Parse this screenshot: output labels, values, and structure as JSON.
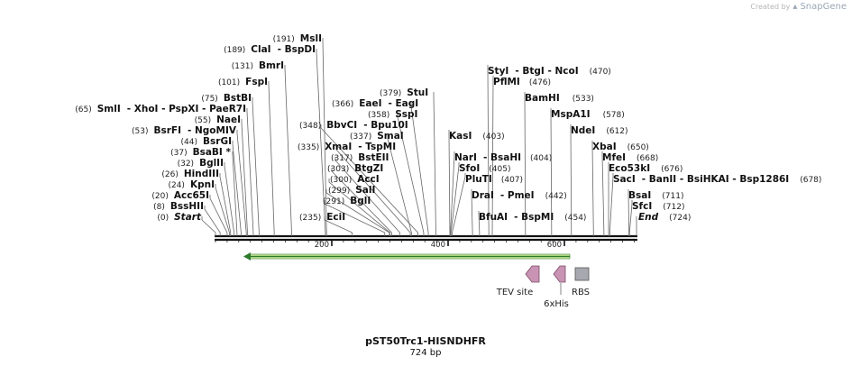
{
  "credit": {
    "created_by": "Created by",
    "brand": "SnapGene"
  },
  "title": "pST50Trc1-HISNDHFR",
  "length_label": "724 bp",
  "sequence_length": 724,
  "ruler": {
    "ticks": [
      200,
      400,
      600
    ]
  },
  "colors": {
    "backbone": "#111111",
    "orf_fill": "#d4f0a0",
    "orf_stroke": "#2d7a2d",
    "misc_feature": "#c994b4",
    "rbs": "#a8a8b0"
  },
  "left_sites": [
    {
      "pos": "(0)",
      "name": "Start"
    },
    {
      "pos": "(8)",
      "name": "BssHII"
    },
    {
      "pos": "(20)",
      "name": "Acc65I"
    },
    {
      "pos": "(24)",
      "name": "KpnI"
    },
    {
      "pos": "(26)",
      "name": "HindIII"
    },
    {
      "pos": "(32)",
      "name": "BglII"
    },
    {
      "pos": "(37)",
      "name": "BsaBI *"
    },
    {
      "pos": "(44)",
      "name": "BsrGI"
    },
    {
      "pos": "(53)",
      "name": "BsrFI",
      "extra": "- NgoMIV"
    },
    {
      "pos": "(55)",
      "name": "NaeI"
    },
    {
      "pos": "(65)",
      "name": "SmlI",
      "extra": "- XhoI   - PspXI   - PaeR7I"
    },
    {
      "pos": "(75)",
      "name": "BstBI"
    },
    {
      "pos": "(101)",
      "name": "FspI"
    },
    {
      "pos": "(131)",
      "name": "BmrI"
    },
    {
      "pos": "(189)",
      "name": "ClaI",
      "extra": "- BspDI"
    },
    {
      "pos": "(191)",
      "name": "MslI"
    }
  ],
  "mid_sites": [
    {
      "pos": "(235)",
      "name": "EciI"
    },
    {
      "pos": "(291)",
      "name": "BglI"
    },
    {
      "pos": "(299)",
      "name": "SalI"
    },
    {
      "pos": "(300)",
      "name": "AccI"
    },
    {
      "pos": "(303)",
      "name": "BtgZI"
    },
    {
      "pos": "(317)",
      "name": "BstEII"
    },
    {
      "pos": "(335)",
      "name": "XmaI",
      "extra": "- TspMI"
    },
    {
      "pos": "(337)",
      "name": "SmaI"
    },
    {
      "pos": "(348)",
      "name": "BbvCI",
      "extra": "- Bpu10I"
    },
    {
      "pos": "(358)",
      "name": "SspI"
    },
    {
      "pos": "(366)",
      "name": "EaeI",
      "extra": "- EagI"
    },
    {
      "pos": "(379)",
      "name": "StuI"
    }
  ],
  "right_sites": [
    {
      "name": "KasI",
      "pos": "(403)"
    },
    {
      "name": "NarI",
      "extra": "- BsaHI",
      "pos": "(404)"
    },
    {
      "name": "SfoI",
      "pos": "(405)"
    },
    {
      "name": "PluTI",
      "pos": "(407)"
    },
    {
      "name": "DraI",
      "extra": "- PmeI",
      "pos": "(442)"
    },
    {
      "name": "BfuAI",
      "extra": "- BspMI",
      "pos": "(454)"
    },
    {
      "name": "StyI",
      "extra": "- BtgI   - NcoI",
      "pos": "(470)"
    },
    {
      "name": "PflMI",
      "pos": "(476)"
    },
    {
      "name": "BamHI",
      "pos": "(533)"
    },
    {
      "name": "MspA1I",
      "pos": "(578)"
    },
    {
      "name": "NdeI",
      "pos": "(612)"
    },
    {
      "name": "XbaI",
      "pos": "(650)"
    },
    {
      "name": "MfeI",
      "pos": "(668)"
    },
    {
      "name": "Eco53kI",
      "pos": "(676)"
    },
    {
      "name": "SacI",
      "extra": "- BanII   - BsiHKAI   - Bsp1286I",
      "pos": "(678)"
    },
    {
      "name": "BsaI",
      "pos": "(711)"
    },
    {
      "name": "SfcI",
      "pos": "(712)"
    },
    {
      "name": "End",
      "pos": "(724)"
    }
  ],
  "features": {
    "tev_site": "TEV site",
    "his_tag": "6xHis",
    "rbs": "RBS"
  }
}
